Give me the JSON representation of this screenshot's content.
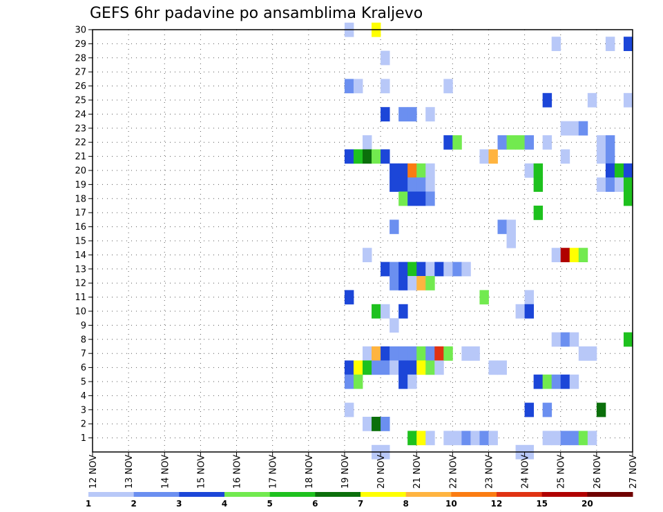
{
  "chart_data": {
    "type": "heatmap",
    "title": "GEFS 6hr padavine po ansamblima Kraljevo",
    "x_tick_labels": [
      "12 NOV",
      "13 NOV",
      "14 NOV",
      "15 NOV",
      "16 NOV",
      "17 NOV",
      "18 NOV",
      "19 NOV",
      "20 NOV",
      "21 NOV",
      "22 NOV",
      "23 NOV",
      "24 NOV",
      "25 NOV",
      "26 NOV",
      "27 NOV"
    ],
    "x_range_days": [
      12,
      27
    ],
    "y_tick_labels": [
      "1",
      "2",
      "3",
      "4",
      "5",
      "6",
      "7",
      "8",
      "9",
      "10",
      "11",
      "12",
      "13",
      "14",
      "15",
      "16",
      "17",
      "18",
      "19",
      "20",
      "21",
      "22",
      "23",
      "24",
      "25",
      "26",
      "27",
      "28",
      "29",
      "30"
    ],
    "y_range": [
      0,
      30
    ],
    "grid": true,
    "legend": "bottom colorbar",
    "colorbar": {
      "labels": [
        "1",
        "2",
        "3",
        "4",
        "5",
        "6",
        "7",
        "8",
        "10",
        "12",
        "15",
        "20"
      ],
      "colors": [
        "#b8c8f8",
        "#6b8ff0",
        "#1c46d8",
        "#72ea4f",
        "#1ec11e",
        "#0b6f0b",
        "#ffff00",
        "#ffb440",
        "#fb7c12",
        "#e03212",
        "#b00000",
        "#700000"
      ]
    },
    "cells_note": "each cell: [day, member, class] ; day = start of 6h step in days of November",
    "cells": [
      [
        19.0,
        30,
        0
      ],
      [
        19.75,
        30,
        6
      ],
      [
        26.25,
        29,
        0
      ],
      [
        24.75,
        29,
        0
      ],
      [
        26.75,
        29,
        2
      ],
      [
        20.0,
        28,
        0
      ],
      [
        19.0,
        26,
        1
      ],
      [
        19.25,
        26,
        0
      ],
      [
        20.0,
        26,
        0
      ],
      [
        21.75,
        26,
        0
      ],
      [
        24.5,
        25,
        2
      ],
      [
        26.75,
        25,
        0
      ],
      [
        25.75,
        25,
        0
      ],
      [
        20.0,
        24,
        2
      ],
      [
        20.5,
        24,
        1
      ],
      [
        20.75,
        24,
        1
      ],
      [
        21.25,
        24,
        0
      ],
      [
        25.0,
        23,
        0
      ],
      [
        25.25,
        23,
        0
      ],
      [
        25.5,
        23,
        1
      ],
      [
        19.5,
        22,
        0
      ],
      [
        21.75,
        22,
        2
      ],
      [
        22.0,
        22,
        3
      ],
      [
        23.25,
        22,
        1
      ],
      [
        23.5,
        22,
        3
      ],
      [
        23.75,
        22,
        3
      ],
      [
        24.0,
        22,
        1
      ],
      [
        24.5,
        22,
        0
      ],
      [
        26.0,
        22,
        0
      ],
      [
        26.25,
        22,
        1
      ],
      [
        19.0,
        21,
        2
      ],
      [
        19.25,
        21,
        4
      ],
      [
        19.5,
        21,
        5
      ],
      [
        19.75,
        21,
        3
      ],
      [
        20.0,
        21,
        2
      ],
      [
        22.75,
        21,
        0
      ],
      [
        23.0,
        21,
        7
      ],
      [
        25.0,
        21,
        0
      ],
      [
        26.0,
        21,
        0
      ],
      [
        26.25,
        21,
        1
      ],
      [
        20.25,
        20,
        2
      ],
      [
        20.5,
        20,
        2
      ],
      [
        20.75,
        20,
        8
      ],
      [
        21.0,
        20,
        3
      ],
      [
        21.25,
        20,
        0
      ],
      [
        24.0,
        20,
        0
      ],
      [
        24.25,
        20,
        4
      ],
      [
        26.25,
        20,
        2
      ],
      [
        26.5,
        20,
        4
      ],
      [
        26.75,
        20,
        2
      ],
      [
        20.25,
        19,
        2
      ],
      [
        20.5,
        19,
        2
      ],
      [
        20.75,
        19,
        1
      ],
      [
        21.0,
        19,
        1
      ],
      [
        21.25,
        19,
        0
      ],
      [
        24.25,
        19,
        4
      ],
      [
        26.0,
        19,
        0
      ],
      [
        26.25,
        19,
        1
      ],
      [
        26.5,
        19,
        0
      ],
      [
        26.75,
        19,
        4
      ],
      [
        20.5,
        18,
        3
      ],
      [
        20.75,
        18,
        2
      ],
      [
        21.0,
        18,
        2
      ],
      [
        21.25,
        18,
        1
      ],
      [
        26.75,
        18,
        4
      ],
      [
        24.25,
        17,
        4
      ],
      [
        20.25,
        16,
        1
      ],
      [
        23.25,
        16,
        1
      ],
      [
        23.5,
        16,
        0
      ],
      [
        23.5,
        15,
        0
      ],
      [
        19.5,
        14,
        0
      ],
      [
        24.75,
        14,
        0
      ],
      [
        25.0,
        14,
        10
      ],
      [
        25.25,
        14,
        6
      ],
      [
        25.5,
        14,
        3
      ],
      [
        20.0,
        13,
        2
      ],
      [
        20.25,
        13,
        1
      ],
      [
        20.5,
        13,
        2
      ],
      [
        20.75,
        13,
        4
      ],
      [
        21.0,
        13,
        2
      ],
      [
        21.25,
        13,
        0
      ],
      [
        21.5,
        13,
        2
      ],
      [
        21.75,
        13,
        0
      ],
      [
        22.0,
        13,
        1
      ],
      [
        22.25,
        13,
        0
      ],
      [
        20.25,
        12,
        1
      ],
      [
        20.5,
        12,
        2
      ],
      [
        20.75,
        12,
        0
      ],
      [
        21.0,
        12,
        7
      ],
      [
        21.25,
        12,
        3
      ],
      [
        19.0,
        11,
        2
      ],
      [
        22.75,
        11,
        3
      ],
      [
        24.0,
        11,
        0
      ],
      [
        19.75,
        10,
        4
      ],
      [
        20.0,
        10,
        0
      ],
      [
        20.5,
        10,
        2
      ],
      [
        23.75,
        10,
        0
      ],
      [
        24.0,
        10,
        2
      ],
      [
        20.25,
        9,
        0
      ],
      [
        24.75,
        8,
        0
      ],
      [
        25.0,
        8,
        1
      ],
      [
        25.25,
        8,
        0
      ],
      [
        26.75,
        8,
        4
      ],
      [
        19.5,
        7,
        0
      ],
      [
        19.75,
        7,
        7
      ],
      [
        20.0,
        7,
        2
      ],
      [
        20.25,
        7,
        1
      ],
      [
        20.5,
        7,
        1
      ],
      [
        20.75,
        7,
        1
      ],
      [
        21.0,
        7,
        3
      ],
      [
        21.25,
        7,
        1
      ],
      [
        21.5,
        7,
        9
      ],
      [
        21.75,
        7,
        3
      ],
      [
        22.25,
        7,
        0
      ],
      [
        22.5,
        7,
        0
      ],
      [
        25.5,
        7,
        0
      ],
      [
        25.75,
        7,
        0
      ],
      [
        19.0,
        6,
        2
      ],
      [
        19.25,
        6,
        6
      ],
      [
        19.5,
        6,
        4
      ],
      [
        19.75,
        6,
        1
      ],
      [
        20.0,
        6,
        1
      ],
      [
        20.25,
        6,
        0
      ],
      [
        20.5,
        6,
        2
      ],
      [
        20.75,
        6,
        2
      ],
      [
        21.0,
        6,
        6
      ],
      [
        21.25,
        6,
        3
      ],
      [
        21.5,
        6,
        0
      ],
      [
        23.0,
        6,
        0
      ],
      [
        23.25,
        6,
        0
      ],
      [
        19.0,
        5,
        1
      ],
      [
        19.25,
        5,
        3
      ],
      [
        20.5,
        5,
        2
      ],
      [
        20.75,
        5,
        0
      ],
      [
        24.25,
        5,
        2
      ],
      [
        24.5,
        5,
        3
      ],
      [
        24.75,
        5,
        1
      ],
      [
        25.0,
        5,
        2
      ],
      [
        25.25,
        5,
        0
      ],
      [
        19.0,
        3,
        0
      ],
      [
        24.0,
        3,
        2
      ],
      [
        24.5,
        3,
        1
      ],
      [
        26.0,
        3,
        5
      ],
      [
        19.5,
        2,
        0
      ],
      [
        19.75,
        2,
        5
      ],
      [
        20.0,
        2,
        1
      ],
      [
        20.75,
        1,
        4
      ],
      [
        21.0,
        1,
        6
      ],
      [
        21.25,
        1,
        0
      ],
      [
        21.75,
        1,
        0
      ],
      [
        22.0,
        1,
        0
      ],
      [
        22.25,
        1,
        1
      ],
      [
        22.5,
        1,
        0
      ],
      [
        22.75,
        1,
        1
      ],
      [
        23.0,
        1,
        0
      ],
      [
        24.5,
        1,
        0
      ],
      [
        24.75,
        1,
        0
      ],
      [
        25.0,
        1,
        1
      ],
      [
        25.25,
        1,
        1
      ],
      [
        25.5,
        1,
        3
      ],
      [
        25.75,
        1,
        0
      ],
      [
        19.75,
        0,
        0
      ],
      [
        20.0,
        0,
        0
      ],
      [
        23.75,
        0,
        0
      ],
      [
        24.0,
        0,
        0
      ]
    ]
  }
}
